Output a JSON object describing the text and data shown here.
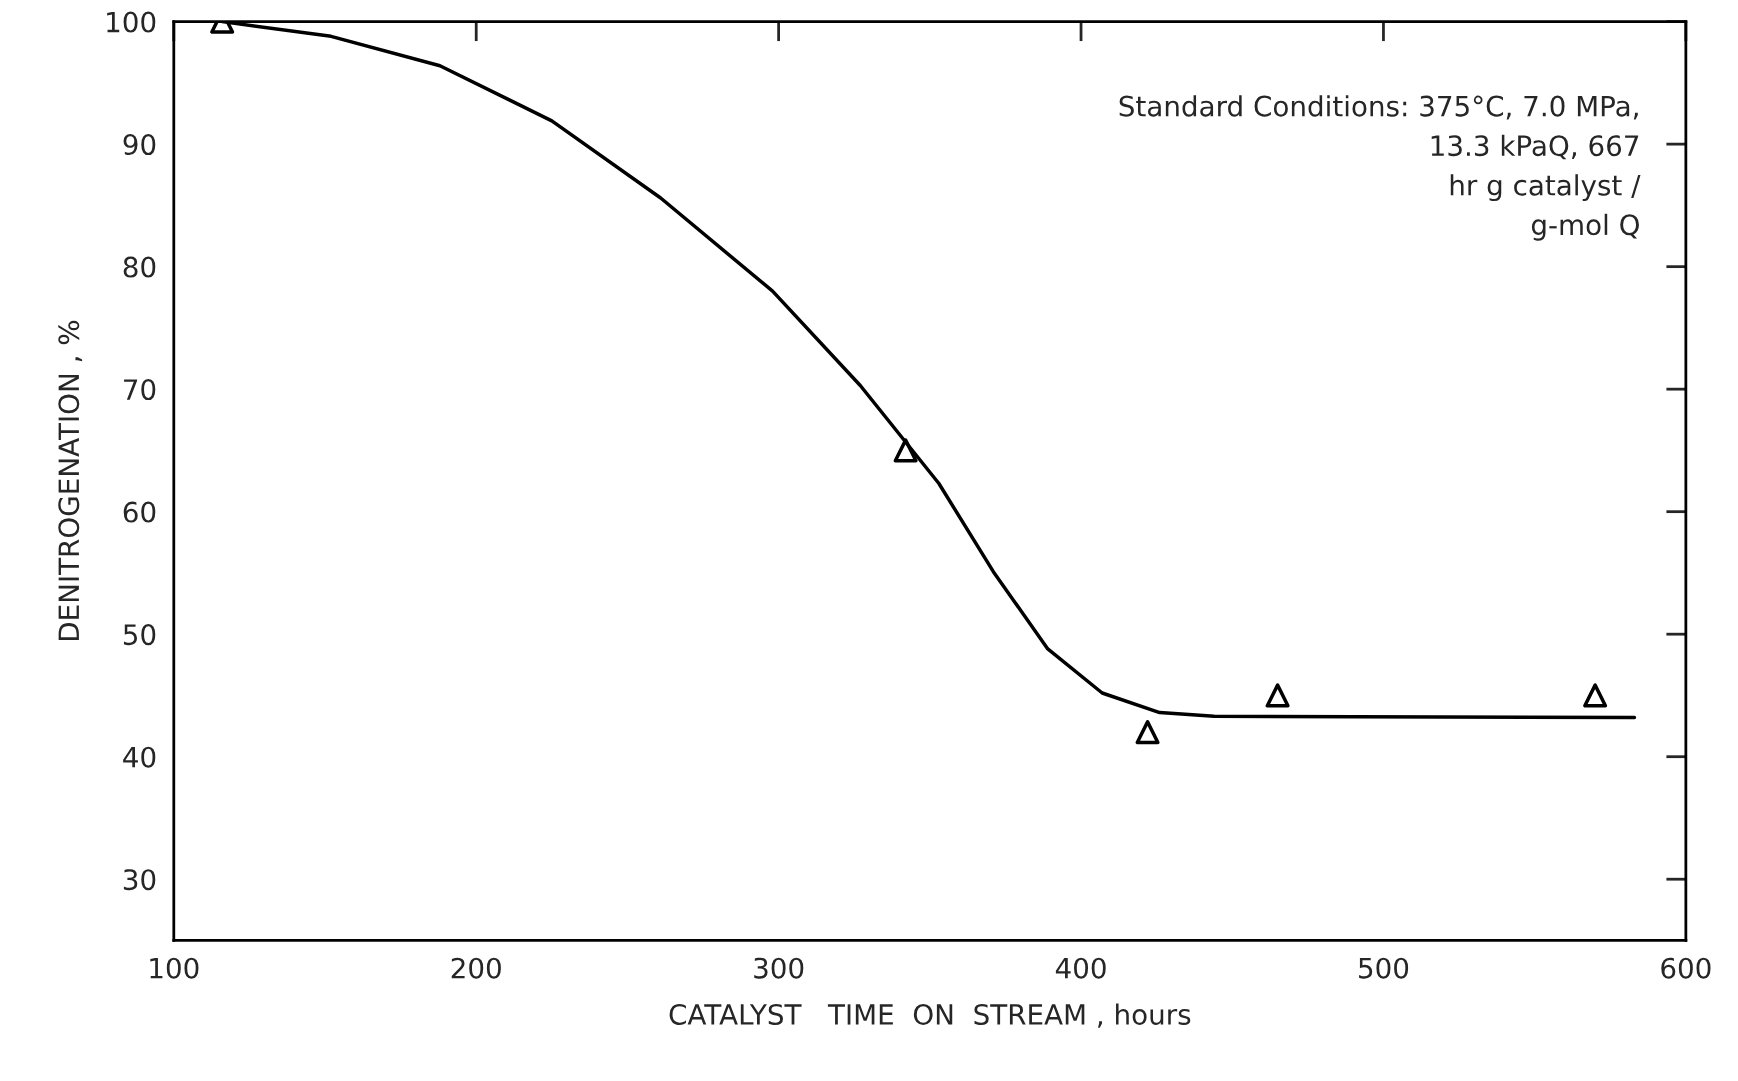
{
  "chart_data": {
    "type": "scatter",
    "xlabel": "CATALYST   TIME  ON  STREAM , hours",
    "ylabel": "DENITROGENATION , %",
    "xlim": [
      100,
      600
    ],
    "xticks": [
      100,
      200,
      300,
      400,
      500,
      600
    ],
    "ylim": [
      25,
      100
    ],
    "yticks": [
      30,
      40,
      50,
      60,
      70,
      80,
      90,
      100
    ],
    "grid": false,
    "legend": false,
    "series": [
      {
        "color": "#000000",
        "marker": "triangle",
        "x": [
          116,
          342,
          422,
          465,
          570
        ],
        "values": [
          100,
          65,
          42,
          45,
          45
        ]
      },
      {
        "type": "line",
        "color": "#000000",
        "marker": "none",
        "line_style": "solid",
        "x": [
          116,
          152,
          188,
          225,
          261,
          298,
          327,
          353,
          371,
          389,
          407,
          426,
          444,
          583
        ],
        "values": [
          100,
          98.8,
          96.4,
          91.9,
          85.6,
          78,
          70.3,
          62.3,
          55.1,
          48.8,
          45.2,
          43.6,
          43.3,
          43.2
        ]
      }
    ],
    "annotations": [
      "Standard Conditions: 375°C, 7.0 MPa,\n13.3 kPaQ, 667\nhr g catalyst /\ng-mol Q"
    ]
  }
}
